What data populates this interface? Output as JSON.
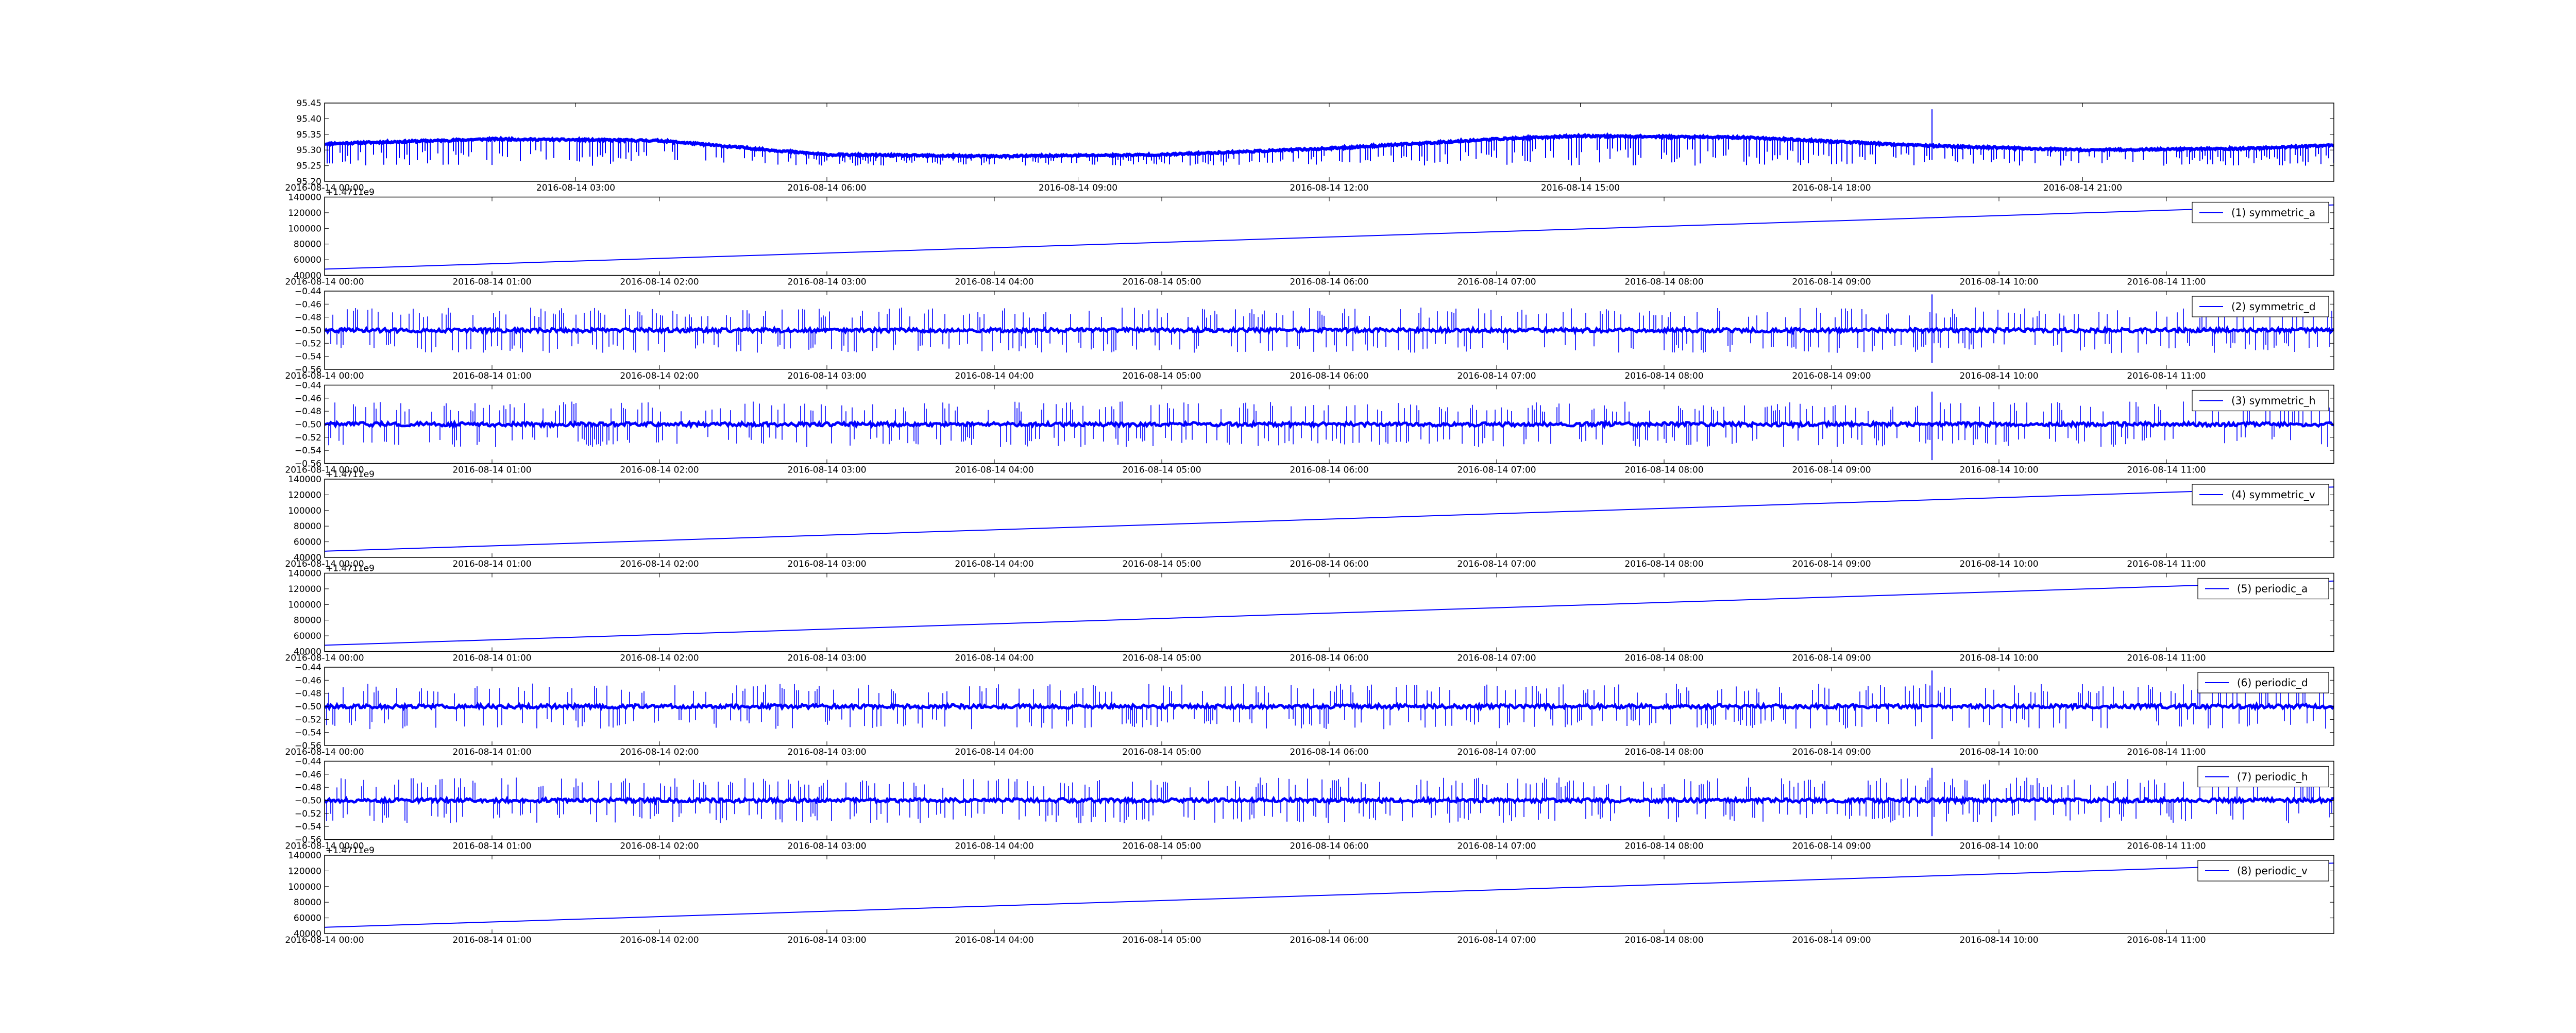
{
  "chart_data": [
    {
      "type": "line",
      "title": "",
      "xlabel": "",
      "ylabel": "",
      "xlim": [
        "2016-08-14 00:00",
        "2016-08-14 23:59"
      ],
      "ylim": [
        95.2,
        95.45
      ],
      "x_ticks": [
        "2016-08-14 00:00",
        "2016-08-14 03:00",
        "2016-08-14 06:00",
        "2016-08-14 09:00",
        "2016-08-14 12:00",
        "2016-08-14 15:00",
        "2016-08-14 18:00",
        "2016-08-14 21:00"
      ],
      "y_ticks": [
        "95.20",
        "95.25",
        "95.30",
        "95.35",
        "95.40",
        "95.45"
      ],
      "offset_label": "",
      "legend": null,
      "grid": false,
      "series": [
        {
          "name": "",
          "color": "#0000ff",
          "baseline": [
            [
              0,
              95.32
            ],
            [
              2,
              95.335
            ],
            [
              4,
              95.33
            ],
            [
              6,
              95.285
            ],
            [
              8,
              95.28
            ],
            [
              10,
              95.285
            ],
            [
              12,
              95.305
            ],
            [
              14,
              95.335
            ],
            [
              15,
              95.345
            ],
            [
              17,
              95.34
            ],
            [
              19,
              95.315
            ],
            [
              21,
              95.3
            ],
            [
              23,
              95.305
            ],
            [
              24,
              95.315
            ]
          ],
          "dip_to": 95.25,
          "spike": {
            "at": 19.2,
            "value": 95.43
          }
        }
      ]
    },
    {
      "type": "line",
      "title": "",
      "xlabel": "",
      "ylabel": "",
      "xlim": [
        "2016-08-14 00:00",
        "2016-08-14 12:00"
      ],
      "ylim": [
        40000,
        140000
      ],
      "x_ticks": [
        "2016-08-14 00:00",
        "2016-08-14 01:00",
        "2016-08-14 02:00",
        "2016-08-14 03:00",
        "2016-08-14 04:00",
        "2016-08-14 05:00",
        "2016-08-14 06:00",
        "2016-08-14 07:00",
        "2016-08-14 08:00",
        "2016-08-14 09:00",
        "2016-08-14 10:00",
        "2016-08-14 11:00"
      ],
      "y_ticks": [
        "40000",
        "60000",
        "80000",
        "100000",
        "120000",
        "140000"
      ],
      "offset_label": "+1.4711e9",
      "legend": {
        "label": "(1) symmetric_a",
        "position": "upper-right"
      },
      "grid": false,
      "series": [
        {
          "name": "(1) symmetric_a",
          "color": "#0000ff",
          "x": [
            "2016-08-14 00:00",
            "2016-08-14 12:00"
          ],
          "y": [
            48000,
            130000
          ]
        }
      ]
    },
    {
      "type": "line",
      "title": "",
      "xlabel": "",
      "ylabel": "",
      "xlim": [
        "2016-08-14 00:00",
        "2016-08-14 12:00"
      ],
      "ylim": [
        -0.56,
        -0.44
      ],
      "x_ticks": [
        "2016-08-14 00:00",
        "2016-08-14 01:00",
        "2016-08-14 02:00",
        "2016-08-14 03:00",
        "2016-08-14 04:00",
        "2016-08-14 05:00",
        "2016-08-14 06:00",
        "2016-08-14 07:00",
        "2016-08-14 08:00",
        "2016-08-14 09:00",
        "2016-08-14 10:00",
        "2016-08-14 11:00"
      ],
      "y_ticks": [
        "−0.56",
        "−0.54",
        "−0.52",
        "−0.50",
        "−0.48",
        "−0.46",
        "−0.44"
      ],
      "offset_label": "",
      "legend": {
        "label": "(2) symmetric_d",
        "position": "upper-right"
      },
      "grid": false,
      "series": [
        {
          "name": "(2) symmetric_d",
          "color": "#0000ff",
          "center": -0.5,
          "upper": -0.465,
          "lower": -0.535,
          "spike": {
            "at": 9.6,
            "high": -0.445,
            "low": -0.55
          }
        }
      ]
    },
    {
      "type": "line",
      "title": "",
      "xlabel": "",
      "ylabel": "",
      "xlim": [
        "2016-08-14 00:00",
        "2016-08-14 12:00"
      ],
      "ylim": [
        -0.56,
        -0.44
      ],
      "x_ticks": [
        "2016-08-14 00:00",
        "2016-08-14 01:00",
        "2016-08-14 02:00",
        "2016-08-14 03:00",
        "2016-08-14 04:00",
        "2016-08-14 05:00",
        "2016-08-14 06:00",
        "2016-08-14 07:00",
        "2016-08-14 08:00",
        "2016-08-14 09:00",
        "2016-08-14 10:00",
        "2016-08-14 11:00"
      ],
      "y_ticks": [
        "−0.56",
        "−0.54",
        "−0.52",
        "−0.50",
        "−0.48",
        "−0.46",
        "−0.44"
      ],
      "offset_label": "",
      "legend": {
        "label": "(3) symmetric_h",
        "position": "upper-right"
      },
      "grid": false,
      "series": [
        {
          "name": "(3) symmetric_h",
          "color": "#0000ff",
          "center": -0.5,
          "upper": -0.465,
          "lower": -0.535,
          "spike": {
            "at": 9.6,
            "high": -0.45,
            "low": -0.555
          }
        }
      ]
    },
    {
      "type": "line",
      "title": "",
      "xlabel": "",
      "ylabel": "",
      "xlim": [
        "2016-08-14 00:00",
        "2016-08-14 12:00"
      ],
      "ylim": [
        40000,
        140000
      ],
      "x_ticks": [
        "2016-08-14 00:00",
        "2016-08-14 01:00",
        "2016-08-14 02:00",
        "2016-08-14 03:00",
        "2016-08-14 04:00",
        "2016-08-14 05:00",
        "2016-08-14 06:00",
        "2016-08-14 07:00",
        "2016-08-14 08:00",
        "2016-08-14 09:00",
        "2016-08-14 10:00",
        "2016-08-14 11:00"
      ],
      "y_ticks": [
        "40000",
        "60000",
        "80000",
        "100000",
        "120000",
        "140000"
      ],
      "offset_label": "+1.4711e9",
      "legend": {
        "label": "(4) symmetric_v",
        "position": "upper-right"
      },
      "grid": false,
      "series": [
        {
          "name": "(4) symmetric_v",
          "color": "#0000ff",
          "x": [
            "2016-08-14 00:00",
            "2016-08-14 12:00"
          ],
          "y": [
            48000,
            130000
          ]
        }
      ]
    },
    {
      "type": "line",
      "title": "",
      "xlabel": "",
      "ylabel": "",
      "xlim": [
        "2016-08-14 00:00",
        "2016-08-14 12:00"
      ],
      "ylim": [
        40000,
        140000
      ],
      "x_ticks": [
        "2016-08-14 00:00",
        "2016-08-14 01:00",
        "2016-08-14 02:00",
        "2016-08-14 03:00",
        "2016-08-14 04:00",
        "2016-08-14 05:00",
        "2016-08-14 06:00",
        "2016-08-14 07:00",
        "2016-08-14 08:00",
        "2016-08-14 09:00",
        "2016-08-14 10:00",
        "2016-08-14 11:00"
      ],
      "y_ticks": [
        "40000",
        "60000",
        "80000",
        "100000",
        "120000",
        "140000"
      ],
      "offset_label": "+1.4711e9",
      "legend": {
        "label": "(5) periodic_a",
        "position": "upper-right"
      },
      "grid": false,
      "series": [
        {
          "name": "(5) periodic_a",
          "color": "#0000ff",
          "x": [
            "2016-08-14 00:00",
            "2016-08-14 12:00"
          ],
          "y": [
            48000,
            130000
          ]
        }
      ]
    },
    {
      "type": "line",
      "title": "",
      "xlabel": "",
      "ylabel": "",
      "xlim": [
        "2016-08-14 00:00",
        "2016-08-14 12:00"
      ],
      "ylim": [
        -0.56,
        -0.44
      ],
      "x_ticks": [
        "2016-08-14 00:00",
        "2016-08-14 01:00",
        "2016-08-14 02:00",
        "2016-08-14 03:00",
        "2016-08-14 04:00",
        "2016-08-14 05:00",
        "2016-08-14 06:00",
        "2016-08-14 07:00",
        "2016-08-14 08:00",
        "2016-08-14 09:00",
        "2016-08-14 10:00",
        "2016-08-14 11:00"
      ],
      "y_ticks": [
        "−0.56",
        "−0.54",
        "−0.52",
        "−0.50",
        "−0.48",
        "−0.46",
        "−0.44"
      ],
      "offset_label": "",
      "legend": {
        "label": "(6) periodic_d",
        "position": "upper-right"
      },
      "grid": false,
      "series": [
        {
          "name": "(6) periodic_d",
          "color": "#0000ff",
          "center": -0.5,
          "upper": -0.465,
          "lower": -0.535,
          "spike": {
            "at": 9.6,
            "high": -0.445,
            "low": -0.55
          }
        }
      ]
    },
    {
      "type": "line",
      "title": "",
      "xlabel": "",
      "ylabel": "",
      "xlim": [
        "2016-08-14 00:00",
        "2016-08-14 12:00"
      ],
      "ylim": [
        -0.56,
        -0.44
      ],
      "x_ticks": [
        "2016-08-14 00:00",
        "2016-08-14 01:00",
        "2016-08-14 02:00",
        "2016-08-14 03:00",
        "2016-08-14 04:00",
        "2016-08-14 05:00",
        "2016-08-14 06:00",
        "2016-08-14 07:00",
        "2016-08-14 08:00",
        "2016-08-14 09:00",
        "2016-08-14 10:00",
        "2016-08-14 11:00"
      ],
      "y_ticks": [
        "−0.56",
        "−0.54",
        "−0.52",
        "−0.50",
        "−0.48",
        "−0.46",
        "−0.44"
      ],
      "offset_label": "",
      "legend": {
        "label": "(7) periodic_h",
        "position": "upper-right"
      },
      "grid": false,
      "series": [
        {
          "name": "(7) periodic_h",
          "color": "#0000ff",
          "center": -0.5,
          "upper": -0.465,
          "lower": -0.535,
          "spike": {
            "at": 9.6,
            "high": -0.45,
            "low": -0.555
          }
        }
      ]
    },
    {
      "type": "line",
      "title": "",
      "xlabel": "",
      "ylabel": "",
      "xlim": [
        "2016-08-14 00:00",
        "2016-08-14 12:00"
      ],
      "ylim": [
        40000,
        140000
      ],
      "x_ticks": [
        "2016-08-14 00:00",
        "2016-08-14 01:00",
        "2016-08-14 02:00",
        "2016-08-14 03:00",
        "2016-08-14 04:00",
        "2016-08-14 05:00",
        "2016-08-14 06:00",
        "2016-08-14 07:00",
        "2016-08-14 08:00",
        "2016-08-14 09:00",
        "2016-08-14 10:00",
        "2016-08-14 11:00"
      ],
      "y_ticks": [
        "40000",
        "60000",
        "80000",
        "100000",
        "120000",
        "140000"
      ],
      "offset_label": "+1.4711e9",
      "legend": {
        "label": "(8) periodic_v",
        "position": "upper-right"
      },
      "grid": false,
      "series": [
        {
          "name": "(8) periodic_v",
          "color": "#0000ff",
          "x": [
            "2016-08-14 00:00",
            "2016-08-14 12:00"
          ],
          "y": [
            48000,
            130000
          ]
        }
      ]
    }
  ]
}
